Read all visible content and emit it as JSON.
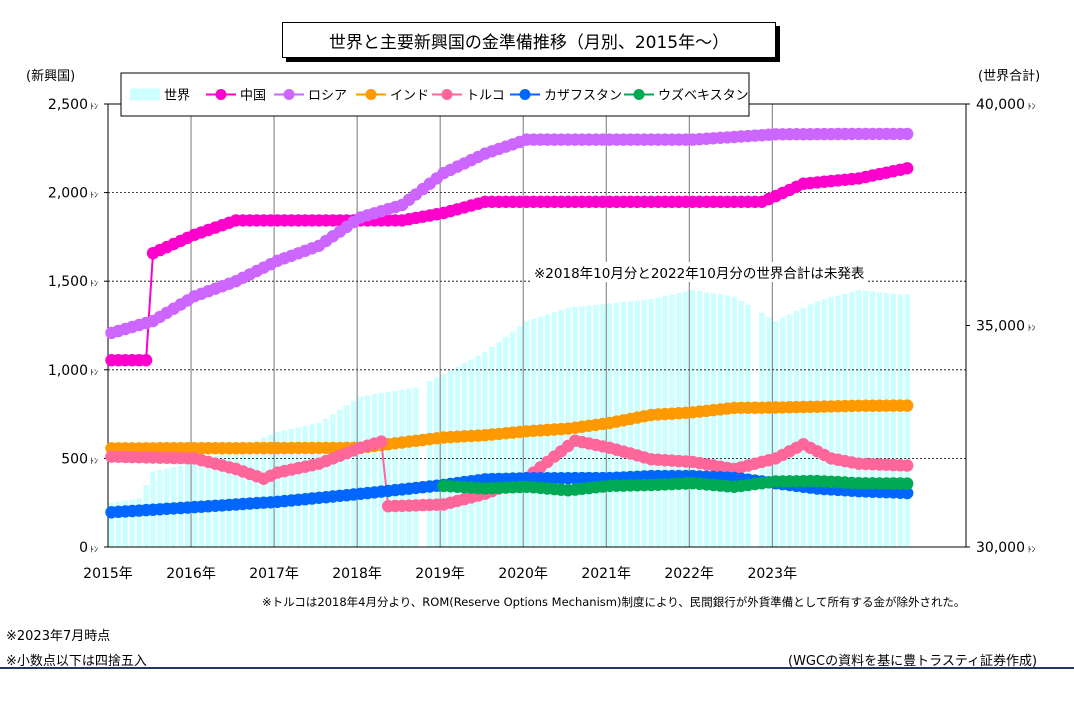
{
  "chart_data": {
    "type": "line",
    "title": "世界と主要新興国の金準備推移（月別、2015年～）",
    "left_axis_label": "(新興国)",
    "right_axis_label": "(世界合計)",
    "left_axis": {
      "min": 0,
      "max": 2500,
      "ticks": [
        "0",
        "500",
        "1,000",
        "1,500",
        "2,000",
        "2,500"
      ],
      "unit": "ﾄﾝ"
    },
    "right_axis": {
      "min": 30000,
      "max": 40000,
      "ticks": [
        "30,000",
        "35,000",
        "40,000"
      ],
      "unit": "ﾄﾝ"
    },
    "x_categories": [
      "2015年",
      "2016年",
      "2017年",
      "2018年",
      "2019年",
      "2020年",
      "2021年",
      "2022年",
      "2023年"
    ],
    "grid": true,
    "legend_position": "top-left",
    "annotation": "※2018年10月分と2022年10月分の世界合計は未発表",
    "series": [
      {
        "name": "世界",
        "kind": "bar",
        "axis": "right",
        "color": "#ccffff",
        "points": [
          [
            0,
            31000
          ],
          [
            4,
            31100
          ],
          [
            6,
            31700
          ],
          [
            12,
            31900
          ],
          [
            18,
            32200
          ],
          [
            24,
            32600
          ],
          [
            30,
            32800
          ],
          [
            36,
            33400
          ],
          [
            44,
            33600
          ],
          [
            48,
            33900
          ],
          [
            54,
            34400
          ],
          [
            60,
            35100
          ],
          [
            66,
            35400
          ],
          [
            72,
            35500
          ],
          [
            78,
            35600
          ],
          [
            84,
            35800
          ],
          [
            90,
            35650
          ],
          [
            96,
            35100
          ],
          [
            102,
            35550
          ],
          [
            108,
            35800
          ],
          [
            114,
            35700
          ]
        ],
        "missing_months": [
          45,
          93
        ]
      },
      {
        "name": "中国",
        "kind": "line",
        "axis": "left",
        "color": "#ff00cc",
        "points": [
          [
            0,
            1054
          ],
          [
            5,
            1054
          ],
          [
            6,
            1658
          ],
          [
            12,
            1762
          ],
          [
            18,
            1843
          ],
          [
            24,
            1843
          ],
          [
            36,
            1843
          ],
          [
            42,
            1843
          ],
          [
            48,
            1885
          ],
          [
            54,
            1948
          ],
          [
            60,
            1948
          ],
          [
            72,
            1948
          ],
          [
            84,
            1948
          ],
          [
            94,
            1948
          ],
          [
            96,
            1980
          ],
          [
            100,
            2050
          ],
          [
            108,
            2080
          ],
          [
            115,
            2137
          ]
        ]
      },
      {
        "name": "ロシア",
        "kind": "line",
        "axis": "left",
        "color": "#cc66ff",
        "points": [
          [
            0,
            1208
          ],
          [
            6,
            1275
          ],
          [
            12,
            1415
          ],
          [
            18,
            1500
          ],
          [
            24,
            1615
          ],
          [
            30,
            1700
          ],
          [
            36,
            1860
          ],
          [
            42,
            1930
          ],
          [
            48,
            2110
          ],
          [
            54,
            2220
          ],
          [
            60,
            2299
          ],
          [
            72,
            2299
          ],
          [
            84,
            2299
          ],
          [
            96,
            2329
          ],
          [
            108,
            2331
          ],
          [
            115,
            2331
          ]
        ]
      },
      {
        "name": "インド",
        "kind": "line",
        "axis": "left",
        "color": "#ff9900",
        "points": [
          [
            0,
            557
          ],
          [
            24,
            558
          ],
          [
            36,
            560
          ],
          [
            42,
            590
          ],
          [
            48,
            618
          ],
          [
            54,
            631
          ],
          [
            60,
            653
          ],
          [
            66,
            668
          ],
          [
            72,
            700
          ],
          [
            78,
            745
          ],
          [
            84,
            760
          ],
          [
            90,
            785
          ],
          [
            96,
            787
          ],
          [
            108,
            797
          ],
          [
            115,
            798
          ]
        ]
      },
      {
        "name": "トルコ",
        "kind": "line",
        "axis": "left",
        "color": "#ff6699",
        "points": [
          [
            0,
            510
          ],
          [
            6,
            505
          ],
          [
            12,
            500
          ],
          [
            18,
            440
          ],
          [
            22,
            385
          ],
          [
            24,
            420
          ],
          [
            30,
            470
          ],
          [
            36,
            560
          ],
          [
            39,
            595
          ],
          [
            40,
            230
          ],
          [
            48,
            240
          ],
          [
            54,
            300
          ],
          [
            60,
            390
          ],
          [
            64,
            510
          ],
          [
            67,
            600
          ],
          [
            72,
            560
          ],
          [
            78,
            495
          ],
          [
            84,
            480
          ],
          [
            90,
            440
          ],
          [
            96,
            500
          ],
          [
            100,
            580
          ],
          [
            104,
            500
          ],
          [
            108,
            470
          ],
          [
            115,
            460
          ]
        ]
      },
      {
        "name": "カザフスタン",
        "kind": "line",
        "axis": "left",
        "color": "#0066ff",
        "points": [
          [
            0,
            196
          ],
          [
            12,
            225
          ],
          [
            24,
            255
          ],
          [
            36,
            300
          ],
          [
            48,
            350
          ],
          [
            54,
            382
          ],
          [
            60,
            388
          ],
          [
            72,
            389
          ],
          [
            78,
            400
          ],
          [
            84,
            400
          ],
          [
            90,
            390
          ],
          [
            96,
            360
          ],
          [
            102,
            330
          ],
          [
            108,
            315
          ],
          [
            115,
            305
          ]
        ]
      },
      {
        "name": "ウズベキスタン",
        "kind": "line",
        "axis": "left",
        "color": "#00aa55",
        "start_month": 48,
        "points": [
          [
            48,
            345
          ],
          [
            54,
            330
          ],
          [
            60,
            340
          ],
          [
            66,
            320
          ],
          [
            72,
            345
          ],
          [
            78,
            350
          ],
          [
            84,
            360
          ],
          [
            90,
            340
          ],
          [
            96,
            370
          ],
          [
            102,
            372
          ],
          [
            108,
            360
          ],
          [
            115,
            358
          ]
        ]
      }
    ]
  },
  "notes": {
    "turkey": "※トルコは2018年4月分より、ROM(Reserve Options Mechanism)制度により、民間銀行が外貨準備として所有する金が除外された。",
    "as_of": "※2023年7月時点",
    "rounding": "※小数点以下は四捨五入",
    "source": "(WGCの資料を基に豊トラスティ証券作成)"
  }
}
